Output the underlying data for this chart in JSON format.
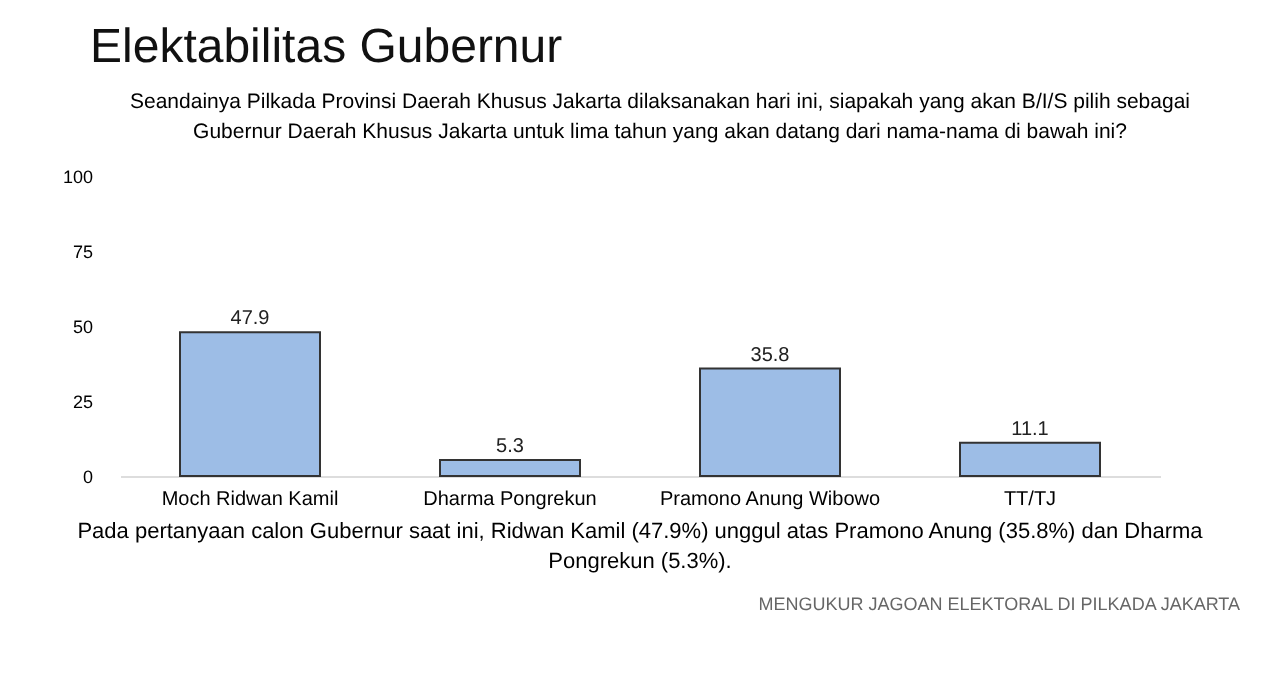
{
  "chart_data": {
    "type": "bar",
    "title": "Elektabilitas Gubernur",
    "subtitle": "Seandainya Pilkada Provinsi Daerah Khusus Jakarta dilaksanakan hari ini, siapakah yang akan B/I/S pilih sebagai\nGubernur Daerah Khusus Jakarta untuk lima tahun yang akan datang dari nama-nama di bawah ini?",
    "categories": [
      "Moch Ridwan Kamil",
      "Dharma Pongrekun",
      "Pramono Anung Wibowo",
      "TT/TJ"
    ],
    "values": [
      47.9,
      5.3,
      35.8,
      11.1
    ],
    "color": "#9dbde6",
    "ylim": [
      0,
      100
    ],
    "yticks": [
      0,
      25,
      50,
      75,
      100
    ],
    "grid": false,
    "data_labels": true,
    "annotations": [
      "Pada pertanyaan calon Gubernur saat ini, Ridwan Kamil (47.9%) unggul atas Pramono Anung (35.8%) dan Dharma\nPongrekun (5.3%).",
      "MENGUKUR JAGOAN ELEKTORAL DI PILKADA JAKARTA"
    ]
  }
}
